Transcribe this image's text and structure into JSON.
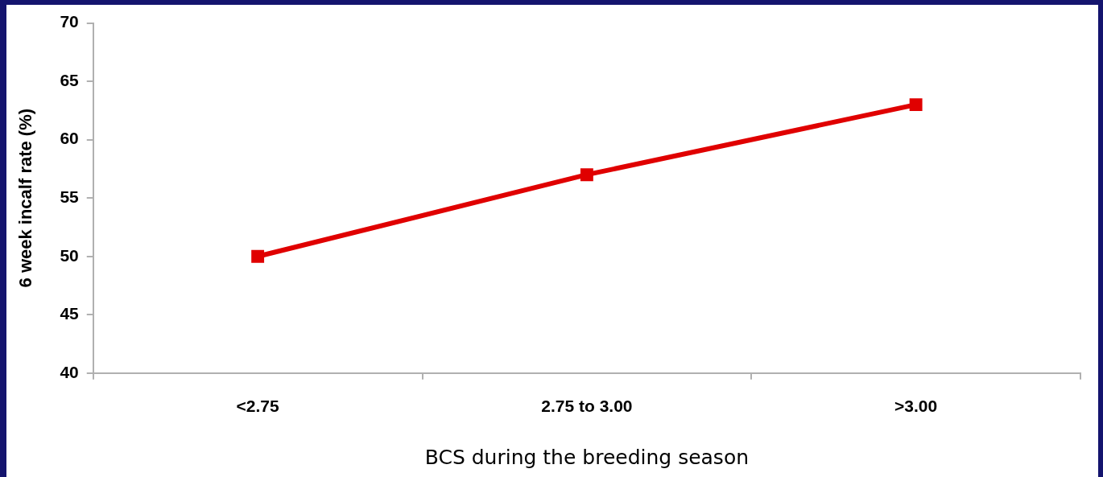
{
  "chart_data": {
    "type": "line",
    "xlabel": "BCS during the breeding season",
    "ylabel": "6 week incalf rate (%)",
    "categories": [
      "<2.75",
      "2.75 to 3.00",
      ">3.00"
    ],
    "series": [
      {
        "color": "#e00000",
        "values": [
          50,
          57,
          63
        ]
      }
    ],
    "ylim": [
      40,
      70
    ],
    "yticks": [
      40,
      45,
      50,
      55,
      60,
      65,
      70
    ],
    "grid": false,
    "legend": false,
    "marker": "square",
    "line_style": "solid"
  }
}
